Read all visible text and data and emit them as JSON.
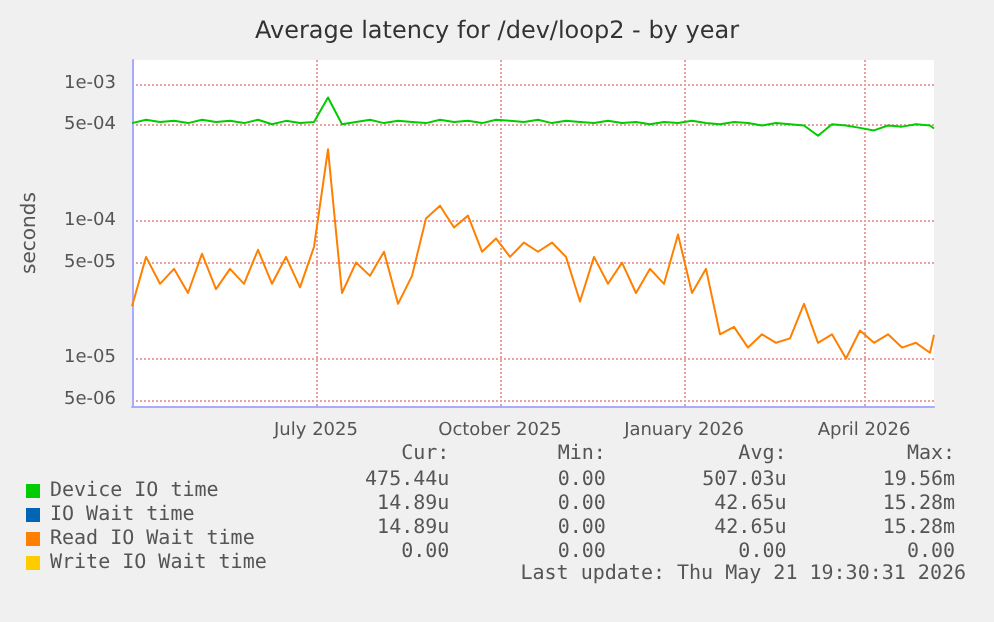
{
  "chart_data": {
    "type": "line",
    "title": "Average latency for /dev/loop2 - by year",
    "ylabel": "seconds",
    "x": [
      "2025-04-15",
      "2025-04-22",
      "2025-04-29",
      "2025-05-06",
      "2025-05-13",
      "2025-05-20",
      "2025-05-27",
      "2025-06-03",
      "2025-06-10",
      "2025-06-17",
      "2025-06-24",
      "2025-07-01",
      "2025-07-08",
      "2025-07-15",
      "2025-07-22",
      "2025-07-29",
      "2025-08-05",
      "2025-08-12",
      "2025-08-19",
      "2025-08-26",
      "2025-09-02",
      "2025-09-09",
      "2025-09-16",
      "2025-09-23",
      "2025-09-30",
      "2025-10-07",
      "2025-10-14",
      "2025-10-21",
      "2025-10-28",
      "2025-11-04",
      "2025-11-11",
      "2025-11-18",
      "2025-11-25",
      "2025-12-02",
      "2025-12-09",
      "2025-12-16",
      "2025-12-23",
      "2025-12-30",
      "2026-01-06",
      "2026-01-13",
      "2026-01-20",
      "2026-01-27",
      "2026-02-03",
      "2026-02-10",
      "2026-02-17",
      "2026-02-24",
      "2026-03-03",
      "2026-03-10",
      "2026-03-17",
      "2026-03-24",
      "2026-03-31",
      "2026-04-07",
      "2026-04-14",
      "2026-04-21",
      "2026-04-28",
      "2026-05-05",
      "2026-05-12",
      "2026-05-19",
      "2026-05-21"
    ],
    "series": [
      {
        "name": "Device IO time",
        "color": "#00cc00",
        "values": [
          0.00052,
          0.00055,
          0.00053,
          0.00054,
          0.00052,
          0.00055,
          0.00053,
          0.00054,
          0.00052,
          0.00055,
          0.00051,
          0.00054,
          0.00052,
          0.00053,
          0.0008,
          0.00051,
          0.00053,
          0.00055,
          0.00052,
          0.00054,
          0.00053,
          0.00052,
          0.00055,
          0.00053,
          0.00054,
          0.00052,
          0.00055,
          0.00054,
          0.00053,
          0.00055,
          0.00052,
          0.00054,
          0.00053,
          0.00052,
          0.00054,
          0.00052,
          0.00053,
          0.00051,
          0.00053,
          0.00052,
          0.00054,
          0.00052,
          0.00051,
          0.00053,
          0.00052,
          0.0005,
          0.00052,
          0.00051,
          0.0005,
          0.00042,
          0.00051,
          0.0005,
          0.00048,
          0.00046,
          0.0005,
          0.00049,
          0.00051,
          0.0005,
          0.000475
        ]
      },
      {
        "name": "IO Wait time",
        "color": "#0066b3",
        "values": [
          null,
          null,
          null,
          null,
          null,
          null,
          null,
          null,
          null,
          null,
          null,
          null,
          null,
          null,
          null,
          null,
          null,
          null,
          null,
          null,
          null,
          null,
          null,
          null,
          null,
          null,
          null,
          null,
          null,
          null,
          null,
          null,
          null,
          null,
          null,
          null,
          null,
          null,
          null,
          null,
          null,
          null,
          null,
          null,
          null,
          null,
          null,
          null,
          null,
          null,
          null,
          null,
          null,
          null,
          null,
          null,
          null,
          null,
          null
        ]
      },
      {
        "name": "Read IO Wait time",
        "color": "#ff8000",
        "values": [
          2.4e-05,
          5.5e-05,
          3.5e-05,
          4.5e-05,
          3e-05,
          5.8e-05,
          3.2e-05,
          4.5e-05,
          3.5e-05,
          6.2e-05,
          3.5e-05,
          5.5e-05,
          3.3e-05,
          6.5e-05,
          0.000335,
          3e-05,
          5e-05,
          4e-05,
          6e-05,
          2.5e-05,
          4e-05,
          0.000105,
          0.00013,
          9e-05,
          0.00011,
          6e-05,
          7.5e-05,
          5.5e-05,
          7e-05,
          6e-05,
          7e-05,
          5.5e-05,
          2.6e-05,
          5.5e-05,
          3.5e-05,
          5e-05,
          3e-05,
          4.5e-05,
          3.5e-05,
          8e-05,
          3e-05,
          4.5e-05,
          1.5e-05,
          1.7e-05,
          1.2e-05,
          1.5e-05,
          1.3e-05,
          1.4e-05,
          2.5e-05,
          1.3e-05,
          1.5e-05,
          1e-05,
          1.6e-05,
          1.3e-05,
          1.5e-05,
          1.2e-05,
          1.3e-05,
          1.1e-05,
          1.49e-05
        ]
      },
      {
        "name": "Write IO Wait time",
        "color": "#ffcc00",
        "values": [
          null,
          null,
          null,
          null,
          null,
          null,
          null,
          null,
          null,
          null,
          null,
          null,
          null,
          null,
          null,
          null,
          null,
          null,
          null,
          null,
          null,
          null,
          null,
          null,
          null,
          null,
          null,
          null,
          null,
          null,
          null,
          null,
          null,
          null,
          null,
          null,
          null,
          null,
          null,
          null,
          null,
          null,
          null,
          null,
          null,
          null,
          null,
          null,
          null,
          null,
          null,
          null,
          null,
          null,
          null,
          null,
          null,
          null,
          null
        ]
      }
    ],
    "log": "y",
    "ylim": [
      4.5e-06,
      0.0015
    ],
    "yticks": [
      {
        "value": 5e-06,
        "label": "5e-06"
      },
      {
        "value": 1e-05,
        "label": "1e-05"
      },
      {
        "value": 5e-05,
        "label": "5e-05"
      },
      {
        "value": 0.0001,
        "label": "1e-04"
      },
      {
        "value": 0.0005,
        "label": "5e-04"
      },
      {
        "value": 0.001,
        "label": "1e-03"
      }
    ],
    "xlim": [
      "2025-04-15",
      "2026-05-21"
    ],
    "xticks": [
      {
        "value": "2025-07-16",
        "label": "July 2025"
      },
      {
        "value": "2025-10-16",
        "label": "October 2025"
      },
      {
        "value": "2026-01-16",
        "label": "January 2026"
      },
      {
        "value": "2026-04-16",
        "label": "April 2026"
      }
    ],
    "grid": true,
    "legend": "bottom",
    "marker": "none",
    "line_style": "solid",
    "annotations": [
      "Cur:",
      "Min:",
      "Avg:",
      "Max:",
      "475.44u",
      "0.00",
      "507.03u",
      "19.56m",
      "14.89u",
      "0.00",
      "42.65u",
      "15.28m",
      "14.89u",
      "0.00",
      "42.65u",
      "15.28m",
      "0.00",
      "0.00",
      "0.00",
      "0.00",
      "Last update: Thu May 21 19:30:31 2026"
    ]
  }
}
